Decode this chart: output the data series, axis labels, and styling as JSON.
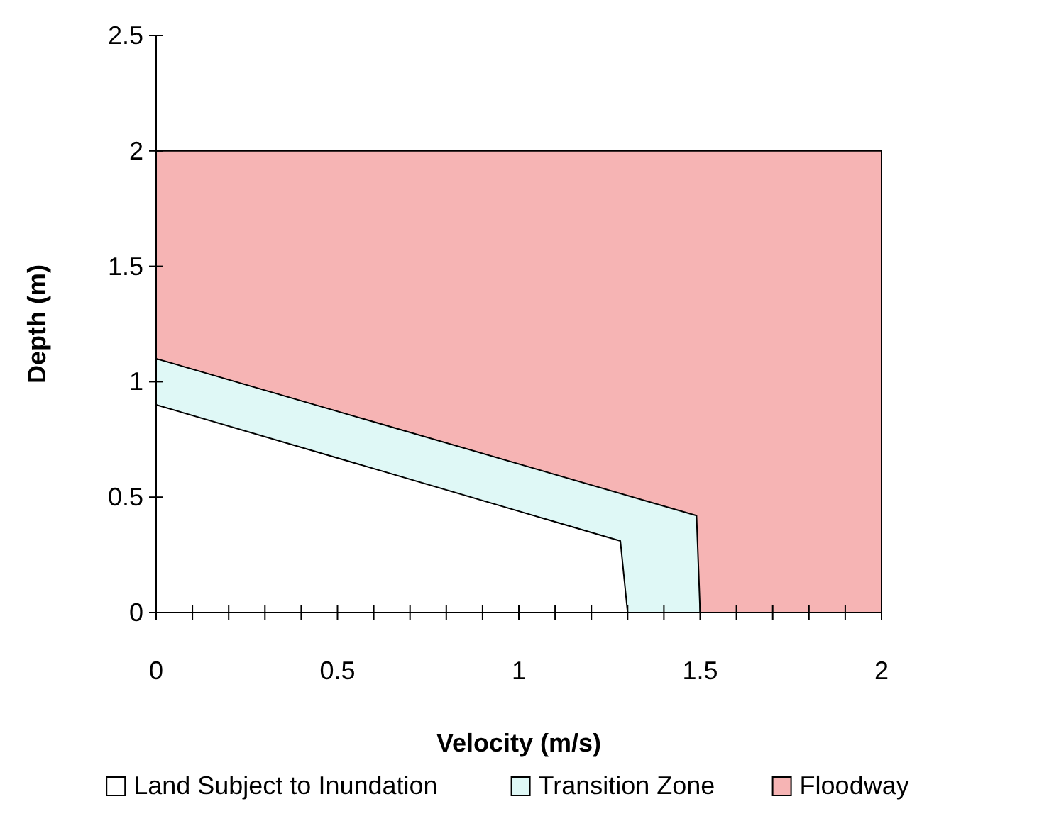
{
  "chart_data": {
    "type": "area",
    "xlabel": "Velocity (m/s)",
    "ylabel": "Depth (m)",
    "xlim": [
      0,
      2
    ],
    "ylim": [
      0,
      2.5
    ],
    "xticks": [
      0,
      {
        "value": 0.1,
        "label": null
      },
      {
        "value": 0.2,
        "label": null
      },
      {
        "value": 0.3,
        "label": null
      },
      {
        "value": 0.4,
        "label": null
      },
      0.5,
      {
        "value": 0.6,
        "label": null
      },
      {
        "value": 0.7,
        "label": null
      },
      {
        "value": 0.8,
        "label": null
      },
      {
        "value": 0.9,
        "label": null
      },
      1,
      {
        "value": 1.1,
        "label": null
      },
      {
        "value": 1.2,
        "label": null
      },
      {
        "value": 1.3,
        "label": null
      },
      {
        "value": 1.4,
        "label": null
      },
      1.5,
      {
        "value": 1.6,
        "label": null
      },
      {
        "value": 1.7,
        "label": null
      },
      {
        "value": 1.8,
        "label": null
      },
      {
        "value": 1.9,
        "label": null
      },
      2
    ],
    "yticks": [
      0,
      0.5,
      1,
      1.5,
      2,
      2.5
    ],
    "grid": false,
    "legend": "bottom",
    "series": [
      {
        "name": "Land Subject to Inundation",
        "color": "#ffffff",
        "x": [
          0,
          1.28,
          1.3
        ],
        "values": [
          0.9,
          0.31,
          0
        ]
      },
      {
        "name": "Transition Zone",
        "color": "#dff8f6",
        "x": [
          0,
          1.49,
          1.5
        ],
        "values": [
          1.1,
          0.42,
          0
        ]
      },
      {
        "name": "Floodway",
        "color": "#f6b4b4",
        "x": [
          0,
          2
        ],
        "values": [
          2,
          2
        ]
      }
    ]
  }
}
